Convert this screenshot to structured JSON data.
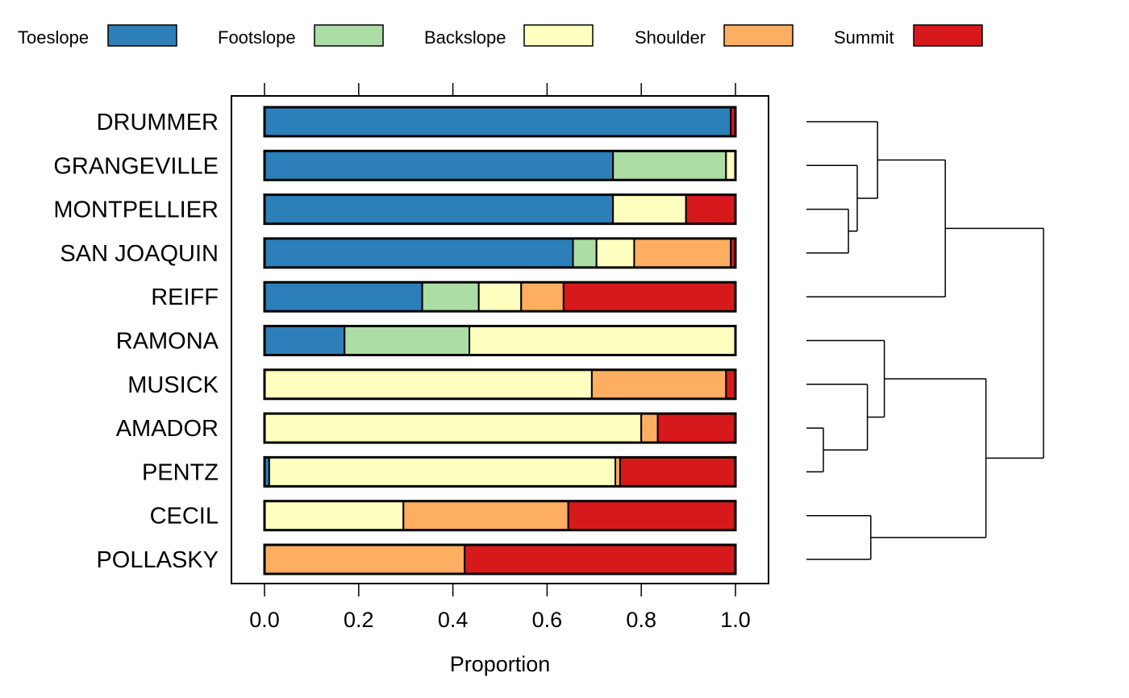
{
  "chart_data": {
    "type": "bar",
    "orientation": "horizontal",
    "stacked": true,
    "xlabel": "Proportion",
    "xlim": [
      -0.07,
      1.07
    ],
    "xticks": [
      "0.0",
      "0.2",
      "0.4",
      "0.6",
      "0.8",
      "1.0"
    ],
    "grid": false,
    "legend_position": "top",
    "categories": [
      "DRUMMER",
      "GRANGEVILLE",
      "MONTPELLIER",
      "SAN JOAQUIN",
      "REIFF",
      "RAMONA",
      "MUSICK",
      "AMADOR",
      "PENTZ",
      "CECIL",
      "POLLASKY"
    ],
    "series": [
      {
        "name": "Toeslope",
        "color": "#2C7FB8",
        "values": [
          0.99,
          0.74,
          0.74,
          0.655,
          0.335,
          0.17,
          0.0,
          0.0,
          0.01,
          0.0,
          0.0
        ]
      },
      {
        "name": "Footslope",
        "color": "#ABDDA4",
        "values": [
          0.0,
          0.24,
          0.0,
          0.05,
          0.12,
          0.265,
          0.0,
          0.0,
          0.0,
          0.0,
          0.0
        ]
      },
      {
        "name": "Backslope",
        "color": "#FFFFBF",
        "values": [
          0.0,
          0.02,
          0.155,
          0.08,
          0.09,
          0.565,
          0.695,
          0.8,
          0.735,
          0.295,
          0.0
        ]
      },
      {
        "name": "Shoulder",
        "color": "#FDAE61",
        "values": [
          0.0,
          0.0,
          0.0,
          0.205,
          0.09,
          0.0,
          0.285,
          0.035,
          0.01,
          0.35,
          0.425
        ]
      },
      {
        "name": "Summit",
        "color": "#D7191C",
        "values": [
          0.01,
          0.0,
          0.105,
          0.01,
          0.365,
          0.0,
          0.02,
          0.165,
          0.245,
          0.355,
          0.575
        ]
      }
    ],
    "dendrogram": {
      "merges": [
        {
          "a": "leaf:2",
          "b": "leaf:3",
          "height": 0.062
        },
        {
          "a": "leaf:1",
          "b": "node:0",
          "height": 0.075
        },
        {
          "a": "leaf:0",
          "b": "node:1",
          "height": 0.105
        },
        {
          "a": "node:2",
          "b": "leaf:4",
          "height": 0.205
        },
        {
          "a": "leaf:7",
          "b": "leaf:8",
          "height": 0.025
        },
        {
          "a": "leaf:6",
          "b": "node:4",
          "height": 0.09
        },
        {
          "a": "leaf:5",
          "b": "node:5",
          "height": 0.115
        },
        {
          "a": "leaf:9",
          "b": "leaf:10",
          "height": 0.095
        },
        {
          "a": "node:6",
          "b": "node:7",
          "height": 0.265
        },
        {
          "a": "node:3",
          "b": "node:8",
          "height": 0.35
        }
      ]
    }
  }
}
